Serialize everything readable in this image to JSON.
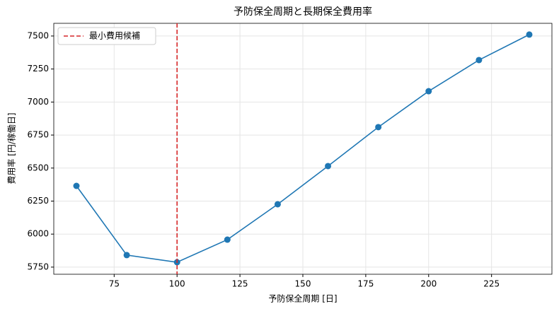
{
  "chart_data": {
    "type": "line",
    "title": "予防保全周期と長期保全費用率",
    "x_label": "予防保全周期 [日]",
    "y_label": "費用率 [円/稼働日]",
    "x": [
      60,
      80,
      100,
      120,
      140,
      160,
      180,
      200,
      220,
      240
    ],
    "series": [
      {
        "name": null,
        "color": "#1f77b4",
        "values": [
          6365,
          5841,
          5787,
          5958,
          6226,
          6515,
          6810,
          7082,
          7318,
          7511
        ]
      }
    ],
    "vline": {
      "x": 100,
      "label": "最小費用候補",
      "color": "#d62728"
    },
    "xlim": [
      51,
      249
    ],
    "xticks": [
      75,
      100,
      125,
      150,
      175,
      200,
      225
    ],
    "ylim": [
      5696,
      7596
    ],
    "yticks": [
      5750,
      6000,
      6250,
      6500,
      6750,
      7000,
      7250,
      7500
    ],
    "grid": true,
    "legend": "upper-left"
  }
}
